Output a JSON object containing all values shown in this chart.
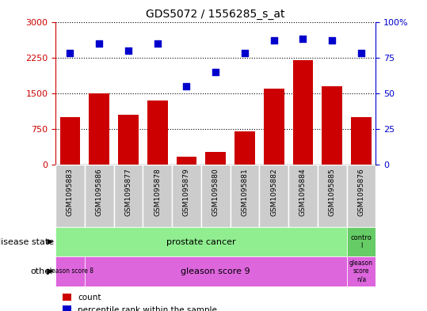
{
  "title": "GDS5072 / 1556285_s_at",
  "samples": [
    "GSM1095883",
    "GSM1095886",
    "GSM1095877",
    "GSM1095878",
    "GSM1095879",
    "GSM1095880",
    "GSM1095881",
    "GSM1095882",
    "GSM1095884",
    "GSM1095885",
    "GSM1095876"
  ],
  "counts": [
    1000,
    1500,
    1050,
    1350,
    175,
    275,
    700,
    1600,
    2200,
    1650,
    1000
  ],
  "percentiles": [
    78,
    85,
    80,
    85,
    55,
    65,
    78,
    87,
    88,
    87,
    78
  ],
  "bar_color": "#cc0000",
  "dot_color": "#0000cc",
  "ylim_left": [
    0,
    3000
  ],
  "ylim_right": [
    0,
    100
  ],
  "yticks_left": [
    0,
    750,
    1500,
    2250,
    3000
  ],
  "yticks_right": [
    0,
    25,
    50,
    75,
    100
  ],
  "ytick_right_labels": [
    "0",
    "25",
    "50",
    "75",
    "100%"
  ],
  "bar_color_hex": "#cc0000",
  "dot_color_hex": "#0000cc",
  "plot_bg": "#ffffff",
  "xtick_bg": "#cccccc",
  "disease_color": "#90ee90",
  "disease_color_ctrl": "#66cc66",
  "other_color": "#dd66dd",
  "title_fontsize": 10,
  "axis_label_color_left": "#cc0000",
  "axis_label_color_right": "#0000cc",
  "legend_items": [
    {
      "label": "count",
      "color": "#cc0000"
    },
    {
      "label": "percentile rank within the sample",
      "color": "#0000cc"
    }
  ]
}
